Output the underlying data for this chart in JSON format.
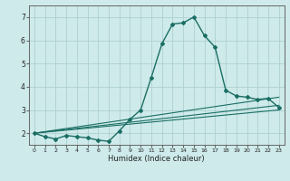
{
  "title": "",
  "xlabel": "Humidex (Indice chaleur)",
  "x_ticks": [
    0,
    1,
    2,
    3,
    4,
    5,
    6,
    7,
    8,
    9,
    10,
    11,
    12,
    13,
    14,
    15,
    16,
    17,
    18,
    19,
    20,
    21,
    22,
    23
  ],
  "y_ticks": [
    2,
    3,
    4,
    5,
    6,
    7
  ],
  "xlim": [
    -0.5,
    23.5
  ],
  "ylim": [
    1.5,
    7.5
  ],
  "bg_color": "#ceeaea",
  "grid_color": "#aed0d0",
  "line_color": "#1a6e64",
  "series": [
    {
      "x": [
        0,
        1,
        2,
        3,
        4,
        5,
        6,
        7,
        8,
        9,
        10,
        11,
        12,
        13,
        14,
        15,
        16,
        17,
        18,
        19,
        20,
        21,
        22,
        23
      ],
      "y": [
        2.0,
        1.85,
        1.75,
        1.9,
        1.85,
        1.8,
        1.7,
        1.65,
        2.1,
        2.6,
        3.0,
        4.4,
        5.85,
        6.7,
        6.75,
        7.0,
        6.2,
        5.7,
        3.85,
        3.6,
        3.55,
        3.45,
        3.5,
        3.1
      ],
      "marker": "D",
      "markersize": 2.0,
      "linewidth": 1.0
    },
    {
      "x": [
        0,
        23
      ],
      "y": [
        2.0,
        3.55
      ],
      "marker": null,
      "linewidth": 0.8
    },
    {
      "x": [
        0,
        23
      ],
      "y": [
        2.0,
        3.2
      ],
      "marker": null,
      "linewidth": 0.8
    },
    {
      "x": [
        0,
        23
      ],
      "y": [
        2.0,
        3.0
      ],
      "marker": null,
      "linewidth": 0.8
    }
  ]
}
